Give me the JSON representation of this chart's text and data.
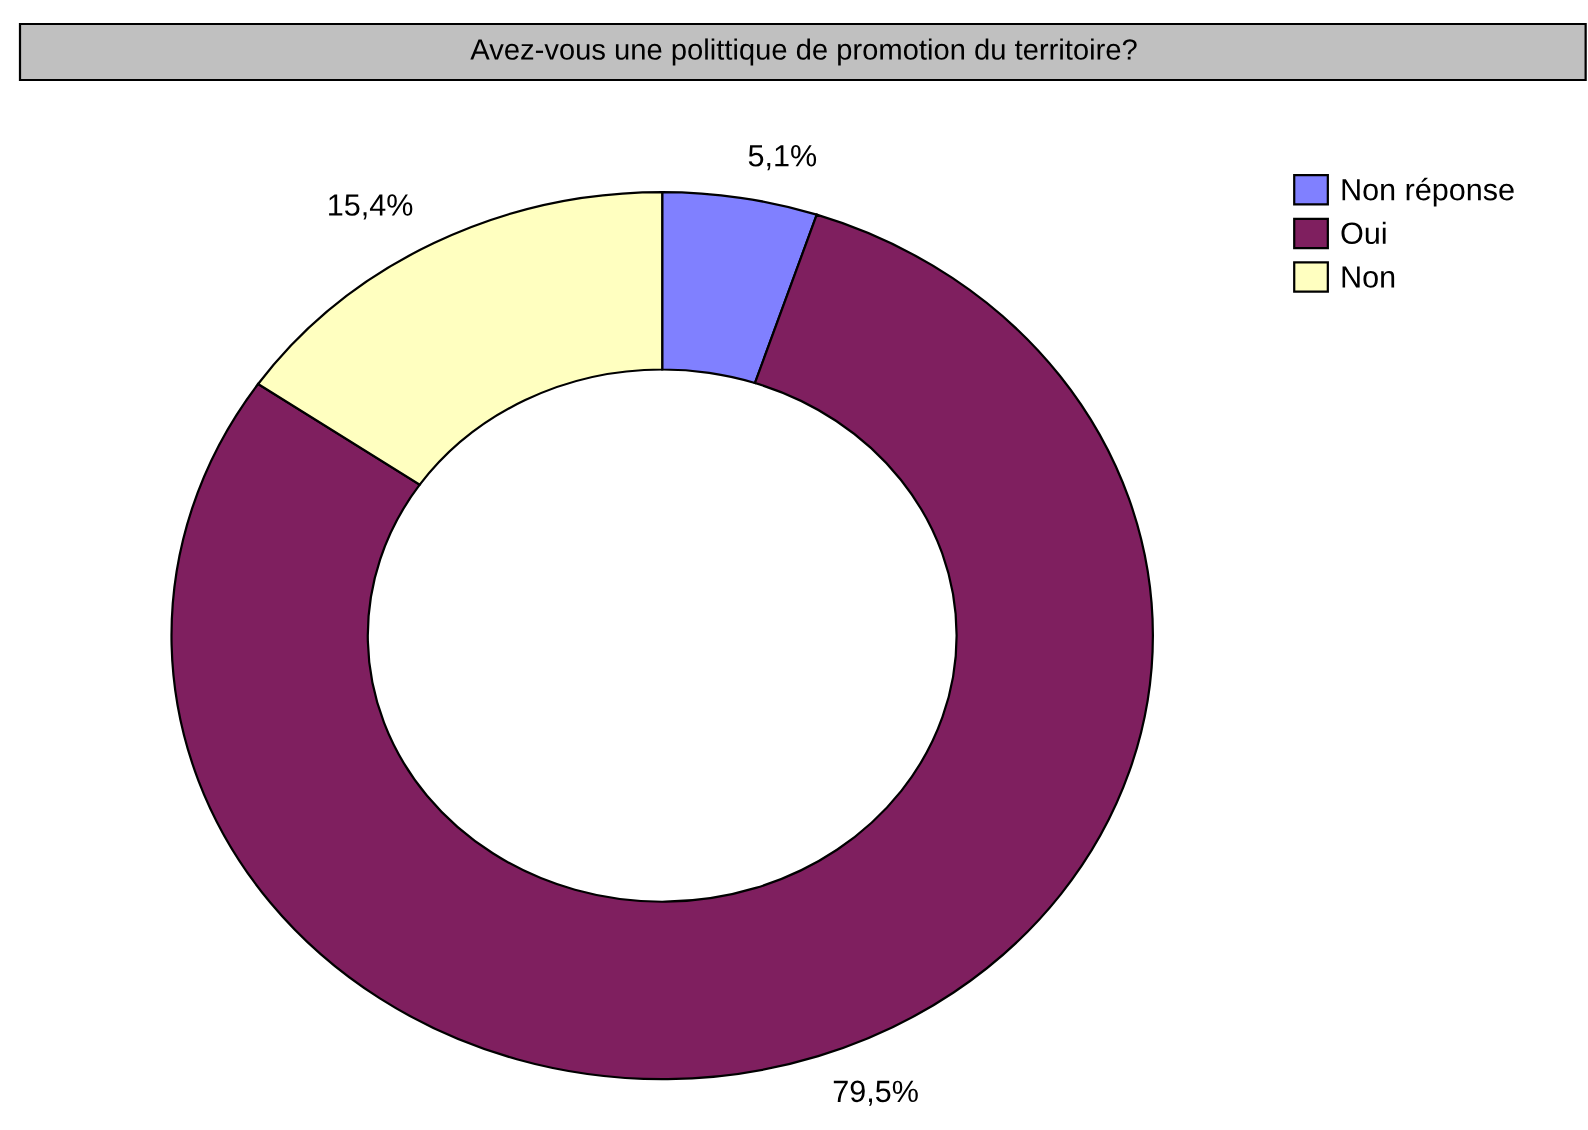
{
  "chart_data": {
    "type": "donut",
    "title": "Avez-vous une polittique de promotion du territoire?",
    "categories": [
      "Non réponse",
      "Oui",
      "Non"
    ],
    "values": [
      5.1,
      79.5,
      15.4
    ],
    "colors": [
      "#8080ff",
      "#7f1f5f",
      "#ffffc0"
    ],
    "value_labels": [
      "5,1%",
      "79,5%",
      "15,4%"
    ],
    "legend": "right"
  }
}
